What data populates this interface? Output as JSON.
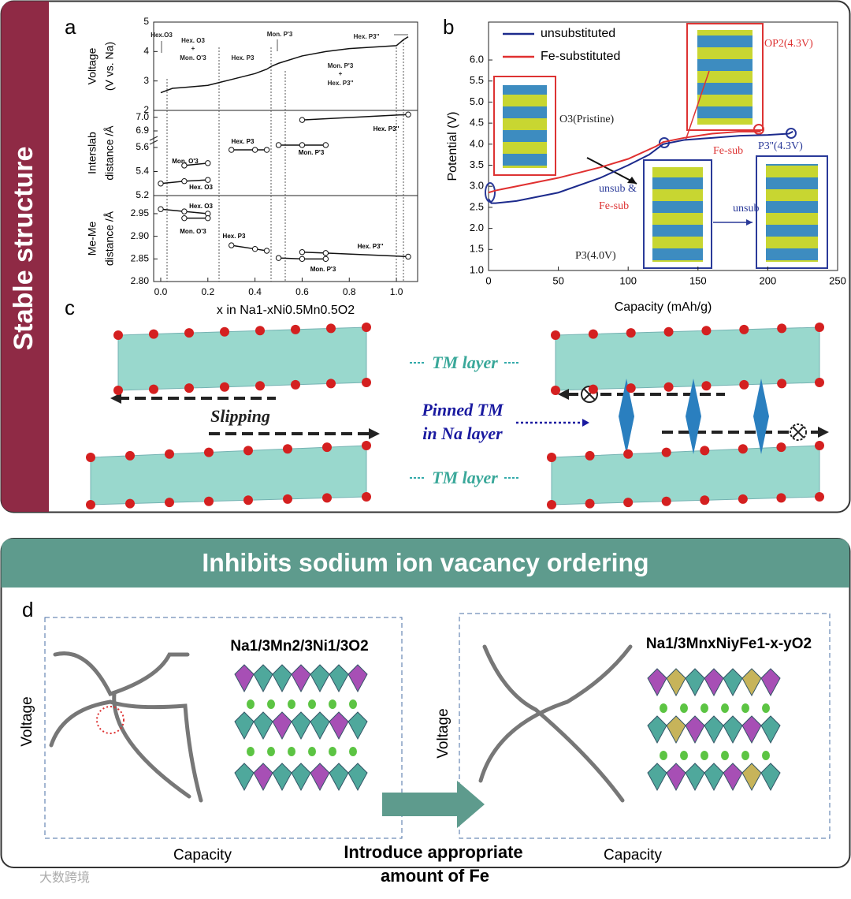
{
  "side_label": "Stable structure",
  "panel_labels": [
    "a",
    "b",
    "c",
    "d"
  ],
  "chart_data": [
    {
      "type": "line",
      "ylabel": [
        "Voltage",
        "(V vs. Na)"
      ],
      "xlim": [
        -0.03,
        1.09
      ],
      "ylim": [
        2,
        5
      ],
      "yticks": [
        2,
        3,
        4,
        5
      ],
      "series": [
        {
          "color": "#111111",
          "x": [
            0,
            0.05,
            0.1,
            0.2,
            0.25,
            0.3,
            0.4,
            0.45,
            0.47,
            0.5,
            0.6,
            0.7,
            0.8,
            0.9,
            1.0,
            1.03,
            1.05
          ],
          "values": [
            2.6,
            2.75,
            2.78,
            2.85,
            2.95,
            3.05,
            3.25,
            3.4,
            3.5,
            3.6,
            3.85,
            4.0,
            4.1,
            4.15,
            4.2,
            4.4,
            4.5
          ]
        }
      ],
      "annotations": [
        "Hex.O3",
        "Hex. O3",
        "+",
        "Mon. O'3",
        "Hex. P3",
        "Mon. P'3",
        "Hex. P3''",
        "Mon. P'3",
        "+",
        "Hex. P3''"
      ]
    },
    {
      "type": "line",
      "markers": true,
      "broken_y": true,
      "ylabel": [
        "Interslab",
        "distance /Å"
      ],
      "xlim": [
        -0.03,
        1.09
      ],
      "ylim": [
        5.2,
        7.05
      ],
      "yticks": [
        5.2,
        5.4,
        5.6,
        6.9,
        {
          "value": 7,
          "label": "7.0"
        }
      ],
      "series": [
        {
          "name": "Hex. O3",
          "color": "#111111",
          "x": [
            0,
            0.1,
            0.2
          ],
          "values": [
            5.3,
            5.32,
            5.33
          ]
        },
        {
          "name": "Mon. O'3",
          "color": "#111111",
          "x": [
            0.1,
            0.2
          ],
          "values": [
            5.45,
            5.47
          ]
        },
        {
          "name": "Hex. P3",
          "color": "#111111",
          "x": [
            0.3,
            0.4,
            0.45
          ],
          "values": [
            5.58,
            5.58,
            5.58
          ]
        },
        {
          "name": "Mon. P'3",
          "color": "#111111",
          "x": [
            0.5,
            0.6,
            0.7
          ],
          "values": [
            5.62,
            5.62,
            5.62
          ]
        },
        {
          "name": "Hex. P3''",
          "color": "#111111",
          "x": [
            0.6,
            1.05
          ],
          "values": [
            6.98,
            7.02
          ]
        }
      ]
    },
    {
      "type": "line",
      "markers": true,
      "ylabel": [
        "Me-Me",
        "distance /Å"
      ],
      "xlabel": "x in Na1-xNi0.5Mn0.5O2",
      "xlim": [
        -0.03,
        1.09
      ],
      "ylim": [
        2.8,
        2.99
      ],
      "yticks": [
        {
          "value": 2.8,
          "label": "2.80"
        },
        2.85,
        {
          "value": 2.9,
          "label": "2.90"
        },
        2.95
      ],
      "xticks": [
        {
          "value": 0,
          "label": "0.0"
        },
        {
          "value": 0.2,
          "label": "0.2"
        },
        {
          "value": 0.4,
          "label": "0.4"
        },
        {
          "value": 0.6,
          "label": "0.6"
        },
        {
          "value": 0.8,
          "label": "0.8"
        },
        {
          "value": 1,
          "label": "1.0"
        }
      ],
      "series": [
        {
          "name": "Hex. O3",
          "color": "#111111",
          "x": [
            0,
            0.1,
            0.2
          ],
          "values": [
            2.96,
            2.955,
            2.95
          ]
        },
        {
          "name": "Mon. O'3",
          "color": "#111111",
          "x": [
            0.1,
            0.2
          ],
          "values": [
            2.94,
            2.94
          ]
        },
        {
          "name": "Hex. P3",
          "color": "#111111",
          "x": [
            0.3,
            0.4,
            0.45
          ],
          "values": [
            2.88,
            2.872,
            2.868
          ]
        },
        {
          "name": "Hex. P3''",
          "color": "#111111",
          "x": [
            0.6,
            0.7,
            1.05
          ],
          "values": [
            2.865,
            2.863,
            2.855
          ]
        },
        {
          "name": "Mon. P'3",
          "color": "#111111",
          "x": [
            0.5,
            0.6,
            0.7
          ],
          "values": [
            2.852,
            2.85,
            2.85
          ]
        }
      ]
    },
    {
      "type": "line",
      "xlabel": "Capacity (mAh/g)",
      "ylabel": [
        "Potential (V)"
      ],
      "xlim": [
        0,
        250
      ],
      "ylim": [
        1,
        6.9
      ],
      "xticks": [
        0,
        50,
        100,
        150,
        200,
        250
      ],
      "yticks": [
        {
          "value": 1,
          "label": "1.0"
        },
        1.5,
        {
          "value": 2,
          "label": "2.0"
        },
        2.5,
        {
          "value": 3,
          "label": "3.0"
        },
        3.5,
        {
          "value": 4,
          "label": "4.0"
        },
        4.5,
        {
          "value": 5,
          "label": "5.0"
        },
        5.5,
        {
          "value": 6,
          "label": "6.0"
        }
      ],
      "legend": "upper left",
      "series": [
        {
          "name": "unsubstituted",
          "color": "#1c2a8c",
          "x": [
            0,
            2,
            5,
            20,
            50,
            80,
            100,
            115,
            125,
            140,
            160,
            180,
            200,
            215,
            218
          ],
          "values": [
            2.7,
            2.6,
            2.6,
            2.65,
            2.85,
            3.2,
            3.5,
            3.75,
            4.0,
            4.1,
            4.15,
            4.2,
            4.22,
            4.25,
            4.3
          ]
        },
        {
          "name": "Fe-substituted",
          "color": "#e03030",
          "x": [
            0,
            5,
            20,
            50,
            80,
            100,
            120,
            125,
            140,
            160,
            180,
            195
          ],
          "values": [
            2.85,
            2.9,
            3.0,
            3.2,
            3.45,
            3.65,
            3.95,
            4.05,
            4.15,
            4.25,
            4.3,
            4.3
          ]
        }
      ],
      "annotations": [
        "O3(Pristine)",
        "OP2(4.3V)",
        "P3''(4.3V)",
        "P3(4.0V)",
        "Fe-sub",
        "unsub &",
        "Fe-sub",
        "unsub"
      ]
    }
  ],
  "panel_c": {
    "labels": [
      "TM layer",
      "Slipping",
      "Pinned TM",
      "in Na layer",
      "TM layer"
    ]
  },
  "section_d": {
    "header": "Inhibits sodium ion vacancy ordering",
    "formulas": [
      "Na1/3Mn2/3Ni1/3O2",
      "Na1/3MnxNiyFe1-x-yO2"
    ],
    "axis_labels": [
      "Voltage",
      "Capacity",
      "Voltage",
      "Capacity"
    ],
    "arrow_text": [
      "Introduce appropriate",
      "amount of Fe"
    ]
  },
  "watermark": "大数跨境"
}
